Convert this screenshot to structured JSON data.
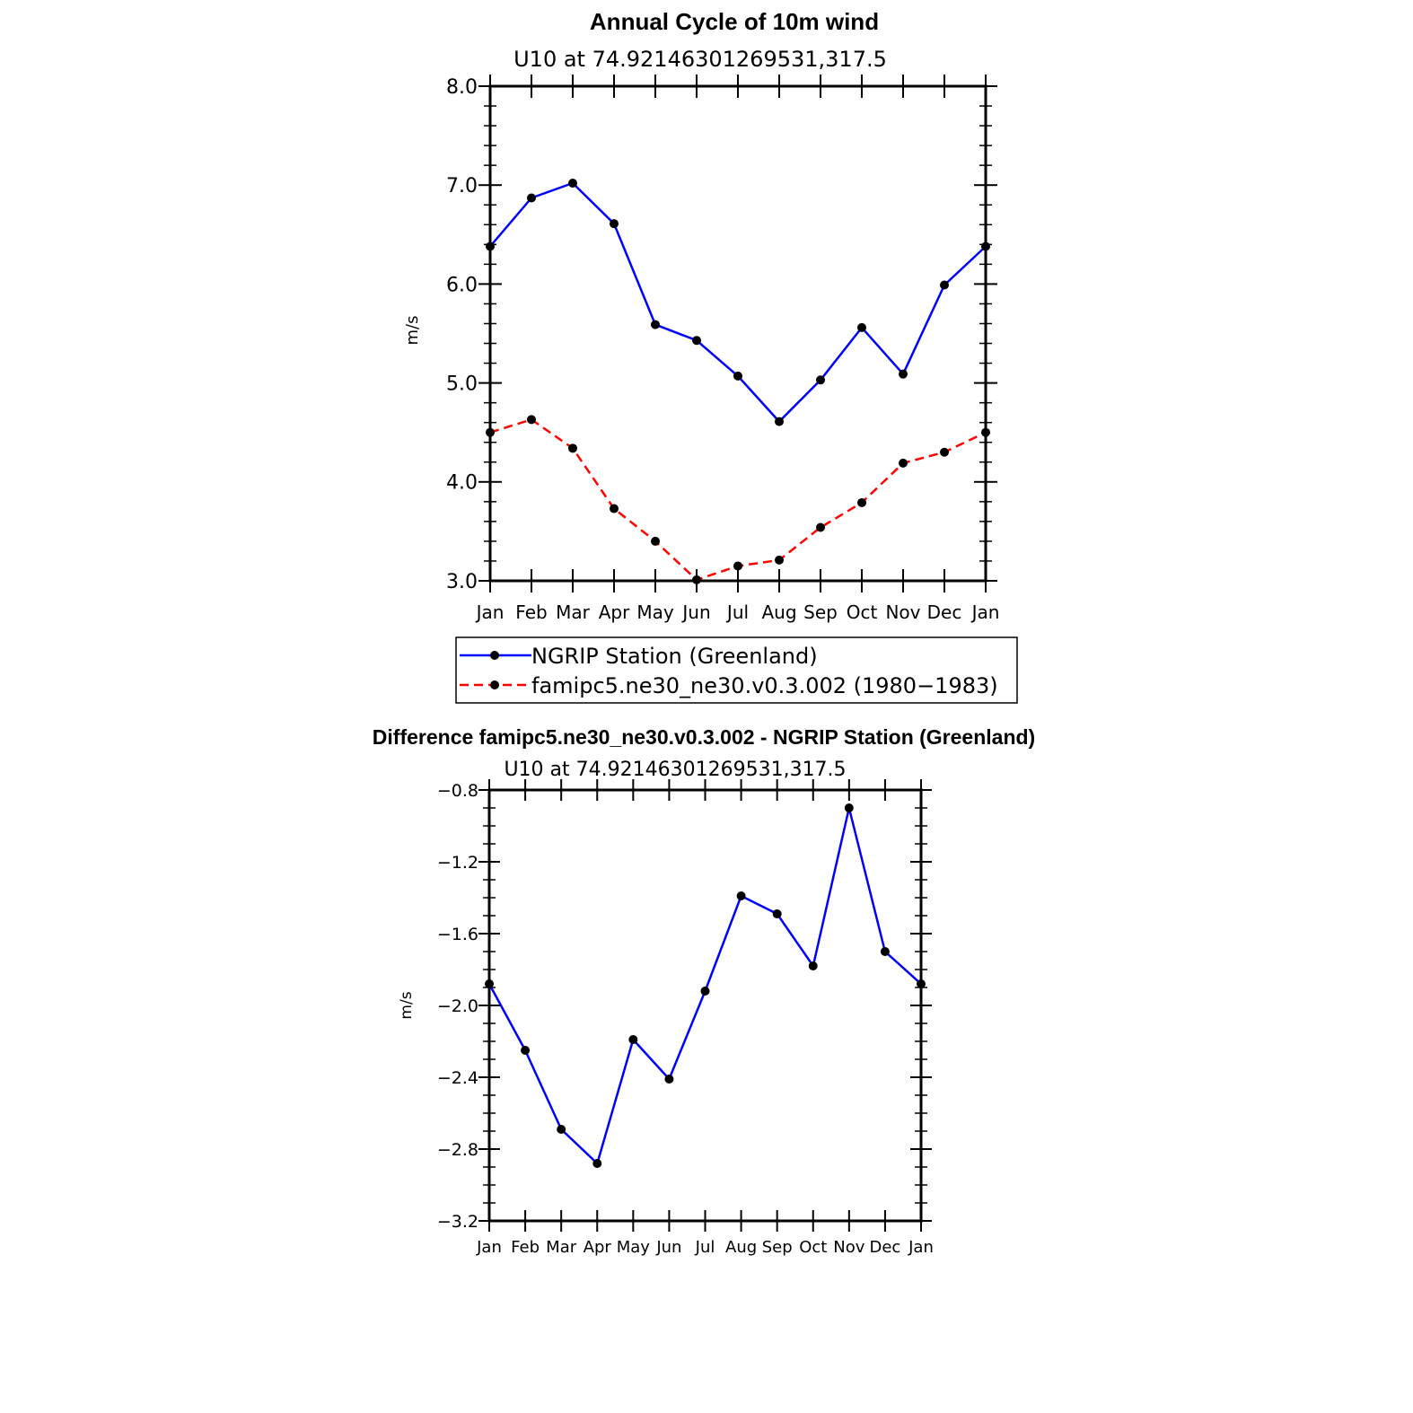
{
  "chart_data": [
    {
      "type": "line",
      "title": "Annual Cycle of 10m wind",
      "subtitle": "U10 at 74.92146301269531,317.5",
      "xlabel": "",
      "ylabel": "m/s",
      "categories": [
        "Jan",
        "Feb",
        "Mar",
        "Apr",
        "May",
        "Jun",
        "Jul",
        "Aug",
        "Sep",
        "Oct",
        "Nov",
        "Dec",
        "Jan"
      ],
      "ylim": [
        3.0,
        8.0
      ],
      "yticks": [
        "3.0",
        "4.0",
        "5.0",
        "6.0",
        "7.0",
        "8.0"
      ],
      "grid": false,
      "legend_position": "bottom",
      "series": [
        {
          "name": "NGRIP Station (Greenland)",
          "color": "#0000ff",
          "style": "solid",
          "values": [
            6.38,
            6.87,
            7.02,
            6.61,
            5.59,
            5.43,
            5.07,
            4.61,
            5.03,
            5.56,
            5.09,
            5.99,
            6.38
          ]
        },
        {
          "name": "famipc5.ne30_ne30.v0.3.002 (1980−1983)",
          "color": "#ff0000",
          "style": "dashed",
          "values": [
            4.5,
            4.63,
            4.34,
            3.73,
            3.4,
            3.01,
            3.15,
            3.21,
            3.54,
            3.79,
            4.19,
            4.3,
            4.5
          ]
        }
      ]
    },
    {
      "type": "line",
      "title": "Difference famipc5.ne30_ne30.v0.3.002 - NGRIP Station (Greenland)",
      "subtitle": "U10 at 74.92146301269531,317.5",
      "xlabel": "",
      "ylabel": "m/s",
      "categories": [
        "Jan",
        "Feb",
        "Mar",
        "Apr",
        "May",
        "Jun",
        "Jul",
        "Aug",
        "Sep",
        "Oct",
        "Nov",
        "Dec",
        "Jan"
      ],
      "ylim": [
        -3.2,
        -0.8
      ],
      "yticks": [
        "−3.2",
        "−2.8",
        "−2.4",
        "−2.0",
        "−1.6",
        "−1.2",
        "−0.8"
      ],
      "grid": false,
      "series": [
        {
          "name": "Difference",
          "color": "#0000ff",
          "style": "solid",
          "values": [
            -1.88,
            -2.25,
            -2.69,
            -2.88,
            -2.19,
            -2.41,
            -1.92,
            -1.39,
            -1.49,
            -1.78,
            -0.9,
            -1.7,
            -1.88
          ]
        }
      ]
    }
  ]
}
